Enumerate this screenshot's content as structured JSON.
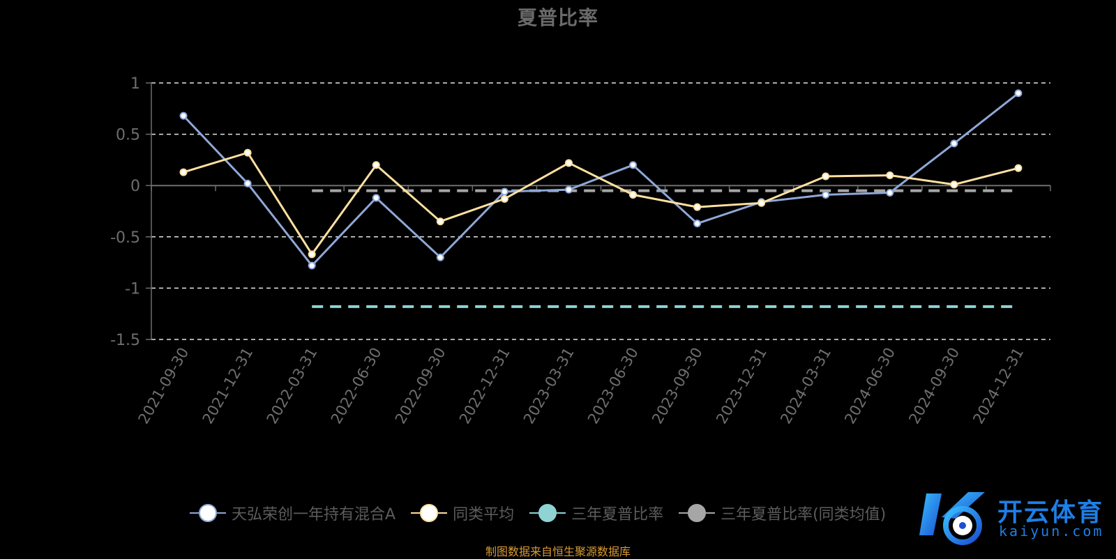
{
  "chart_data": {
    "type": "line",
    "title": "夏普比率",
    "categories": [
      "2021-09-30",
      "2021-12-31",
      "2022-03-31",
      "2022-06-30",
      "2022-09-30",
      "2022-12-31",
      "2023-03-31",
      "2023-06-30",
      "2023-09-30",
      "2023-12-31",
      "2024-03-31",
      "2024-06-30",
      "2024-09-30",
      "2024-12-31"
    ],
    "ylim": [
      -1.5,
      1
    ],
    "yticks": [
      "1",
      "0.5",
      "0",
      "-0.5",
      "-1",
      "-1.5"
    ],
    "grid": true,
    "legend_position": "bottom",
    "series": [
      {
        "name": "天弘荣创一年持有混合A",
        "color": "#8fa8d8",
        "values": [
          0.68,
          0.02,
          -0.78,
          -0.12,
          -0.7,
          -0.06,
          -0.04,
          0.2,
          -0.37,
          -0.16,
          -0.09,
          -0.07,
          0.41,
          0.9
        ]
      },
      {
        "name": "同类平均",
        "color": "#ffe0a0",
        "values": [
          0.13,
          0.32,
          -0.67,
          0.2,
          -0.35,
          -0.13,
          0.22,
          -0.09,
          -0.21,
          -0.17,
          0.09,
          0.1,
          0.01,
          0.17
        ]
      },
      {
        "name": "三年夏普比率",
        "color": "#8fd3d3",
        "style": "dashed",
        "values": [
          null,
          null,
          -1.18,
          -1.18,
          -1.18,
          -1.18,
          -1.18,
          -1.18,
          -1.18,
          -1.18,
          -1.18,
          -1.18,
          -1.18,
          -1.18
        ]
      },
      {
        "name": "三年夏普比率(同类均值)",
        "color": "#a6a6a6",
        "style": "dashed",
        "values": [
          null,
          null,
          -0.05,
          -0.05,
          -0.05,
          -0.05,
          -0.05,
          -0.05,
          -0.05,
          -0.05,
          -0.05,
          -0.05,
          -0.05,
          -0.05
        ]
      }
    ]
  },
  "source_note": "制图数据来自恒生聚源数据库",
  "watermark": {
    "brand": "开云体育",
    "domain": "kaiyun.com"
  }
}
